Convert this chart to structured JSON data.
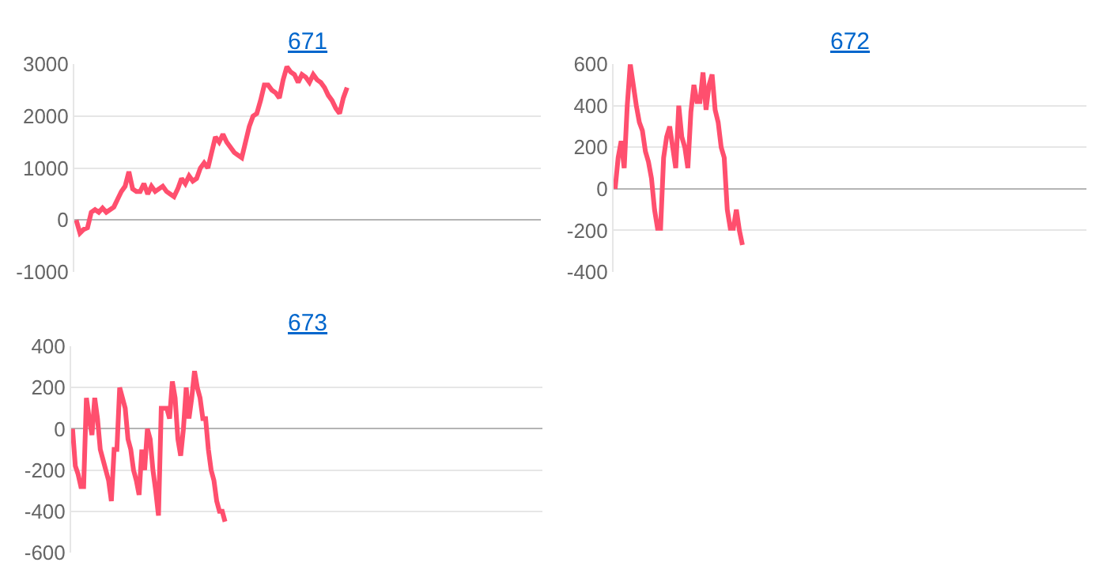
{
  "chart_data": [
    {
      "type": "line",
      "title": "671",
      "color": "#ff4f6e",
      "ylim": [
        -1000,
        3000
      ],
      "yticks": [
        -1000,
        0,
        1000,
        2000,
        3000
      ],
      "grid": "y",
      "tick_labels": "y",
      "marker": "none",
      "categories": [
        null,
        null,
        null,
        null,
        null,
        null,
        null,
        null,
        null,
        null,
        null,
        null,
        null,
        null,
        null,
        null,
        null,
        null,
        null,
        null,
        null,
        null,
        null,
        null,
        null,
        null,
        null,
        null,
        null,
        null,
        null,
        null,
        null,
        null,
        null,
        null,
        null,
        null,
        null,
        null,
        null,
        null,
        null,
        null,
        null,
        null,
        null,
        null,
        null,
        null,
        null,
        null,
        null,
        null,
        null,
        null,
        null,
        null,
        null,
        null,
        null,
        null,
        null,
        null,
        null,
        null,
        null,
        null,
        null,
        null,
        null,
        null,
        null,
        null,
        null,
        null,
        null,
        null,
        null,
        null,
        null,
        null,
        null,
        null,
        null,
        null,
        null,
        null,
        null,
        null,
        null,
        null,
        null,
        null,
        null,
        null,
        null,
        null,
        null,
        null,
        null,
        null,
        null,
        null,
        null,
        null,
        null,
        null,
        null,
        null,
        null,
        null,
        null,
        null,
        null,
        null,
        null,
        null,
        null,
        null,
        null,
        null,
        null,
        null
      ],
      "values": [
        0,
        -250,
        -180,
        -150,
        150,
        200,
        150,
        230,
        150,
        200,
        250,
        400,
        550,
        650,
        930,
        600,
        550,
        550,
        700,
        500,
        650,
        550,
        600,
        650,
        550,
        500,
        450,
        600,
        800,
        700,
        850,
        750,
        800,
        1000,
        1100,
        1000,
        1300,
        1600,
        1500,
        1650,
        1500,
        1400,
        1300,
        1250,
        1200,
        1500,
        1800,
        2000,
        2050,
        2300,
        2600,
        2600,
        2500,
        2450,
        2350,
        2700,
        2950,
        2850,
        2800,
        2650,
        2800,
        2750,
        2650,
        2800,
        2700,
        2650,
        2550,
        2400,
        2300,
        2150,
        2050,
        2350,
        2550,
        null,
        null,
        null,
        null,
        null,
        null,
        null,
        null,
        null,
        null,
        null,
        null,
        null,
        null,
        null,
        null,
        null,
        null,
        null,
        null,
        null,
        null,
        null,
        null,
        null,
        null,
        null,
        null,
        null,
        null,
        null,
        null,
        null,
        null,
        null,
        null,
        null,
        null,
        null,
        null,
        null,
        null,
        null,
        null,
        null,
        null,
        null,
        null,
        null,
        null,
        null
      ]
    },
    {
      "type": "line",
      "title": "672",
      "color": "#ff4f6e",
      "ylim": [
        -400,
        600
      ],
      "yticks": [
        -400,
        -200,
        0,
        200,
        400,
        600
      ],
      "grid": "y",
      "tick_labels": "y",
      "marker": "none",
      "categories": [
        null,
        null,
        null,
        null,
        null,
        null,
        null,
        null,
        null,
        null,
        null,
        null,
        null,
        null,
        null,
        null,
        null,
        null,
        null,
        null,
        null,
        null,
        null,
        null,
        null,
        null,
        null,
        null,
        null,
        null,
        null,
        null,
        null,
        null,
        null,
        null,
        null,
        null,
        null,
        null,
        null,
        null,
        null,
        null,
        null,
        null,
        null,
        null,
        null,
        null,
        null,
        null,
        null,
        null,
        null,
        null,
        null,
        null,
        null,
        null,
        null,
        null,
        null,
        null,
        null,
        null,
        null,
        null,
        null,
        null,
        null,
        null,
        null,
        null,
        null,
        null,
        null,
        null,
        null,
        null,
        null,
        null,
        null,
        null,
        null,
        null,
        null,
        null,
        null,
        null,
        null,
        null,
        null,
        null,
        null,
        null,
        null,
        null,
        null,
        null,
        null,
        null,
        null,
        null,
        null,
        null,
        null,
        null,
        null,
        null,
        null,
        null,
        null,
        null,
        null,
        null,
        null,
        null,
        null,
        null,
        null,
        null,
        null,
        null,
        null,
        null,
        null,
        null,
        null,
        null,
        null,
        null,
        null,
        null,
        null,
        null,
        null,
        null,
        null,
        null,
        null,
        null,
        null,
        null,
        null,
        null,
        null,
        null,
        null,
        null,
        null,
        null,
        null,
        null,
        null,
        null
      ],
      "values": [
        0,
        150,
        230,
        100,
        400,
        600,
        500,
        400,
        320,
        280,
        180,
        130,
        50,
        -100,
        -190,
        -190,
        150,
        250,
        300,
        200,
        100,
        400,
        250,
        200,
        100,
        370,
        500,
        420,
        420,
        560,
        380,
        500,
        550,
        380,
        320,
        200,
        150,
        -100,
        -190,
        -190,
        -100,
        -200,
        -270,
        null,
        null,
        null,
        null,
        null,
        null,
        null,
        null,
        null,
        null,
        null,
        null,
        null,
        null,
        null,
        null,
        null,
        null,
        null,
        null,
        null,
        null,
        null,
        null,
        null,
        null,
        null,
        null,
        null,
        null,
        null,
        null,
        null,
        null,
        null,
        null,
        null,
        null,
        null,
        null,
        null,
        null,
        null,
        null,
        null,
        null,
        null,
        null,
        null,
        null,
        null,
        null,
        null,
        null,
        null,
        null,
        null,
        null,
        null,
        null,
        null,
        null,
        null,
        null,
        null,
        null,
        null,
        null,
        null,
        null,
        null,
        null,
        null,
        null,
        null,
        null,
        null,
        null,
        null,
        null,
        null,
        null,
        null,
        null,
        null,
        null,
        null,
        null,
        null,
        null,
        null,
        null,
        null,
        null,
        null,
        null,
        null,
        null,
        null,
        null,
        null,
        null,
        null,
        null,
        null,
        null,
        null,
        null,
        null,
        null,
        null,
        null,
        null
      ]
    },
    {
      "type": "line",
      "title": "673",
      "color": "#ff4f6e",
      "ylim": [
        -600,
        400
      ],
      "yticks": [
        -600,
        -400,
        -200,
        0,
        200,
        400
      ],
      "grid": "y",
      "tick_labels": "y",
      "marker": "none",
      "categories": [
        null,
        null,
        null,
        null,
        null,
        null,
        null,
        null,
        null,
        null,
        null,
        null,
        null,
        null,
        null,
        null,
        null,
        null,
        null,
        null,
        null,
        null,
        null,
        null,
        null,
        null,
        null,
        null,
        null,
        null,
        null,
        null,
        null,
        null,
        null,
        null,
        null,
        null,
        null,
        null,
        null,
        null,
        null,
        null,
        null,
        null,
        null,
        null,
        null,
        null,
        null,
        null,
        null,
        null,
        null,
        null,
        null,
        null,
        null,
        null,
        null,
        null,
        null,
        null,
        null,
        null,
        null,
        null,
        null,
        null,
        null,
        null,
        null,
        null,
        null,
        null,
        null,
        null,
        null,
        null,
        null,
        null,
        null,
        null,
        null,
        null,
        null,
        null,
        null,
        null,
        null,
        null,
        null,
        null,
        null,
        null,
        null,
        null,
        null,
        null,
        null,
        null,
        null,
        null,
        null,
        null,
        null,
        null,
        null,
        null,
        null,
        null,
        null,
        null,
        null,
        null,
        null,
        null,
        null,
        null,
        null,
        null,
        null,
        null,
        null,
        null,
        null,
        null,
        null,
        null,
        null,
        null,
        null,
        null,
        null,
        null,
        null,
        null,
        null,
        null,
        null,
        null,
        null,
        null,
        null,
        null,
        null,
        null,
        null,
        null,
        null,
        null,
        null,
        null,
        null,
        null,
        null,
        null,
        null,
        null,
        null,
        null,
        null,
        null,
        null,
        null,
        null,
        null,
        null,
        null
      ],
      "values": [
        0,
        -180,
        -220,
        -280,
        -280,
        150,
        50,
        -30,
        150,
        50,
        -100,
        -150,
        -200,
        -250,
        -350,
        -100,
        -100,
        200,
        150,
        100,
        -50,
        -100,
        -200,
        -250,
        -320,
        -100,
        -200,
        0,
        -50,
        -200,
        -300,
        -420,
        100,
        100,
        100,
        50,
        230,
        150,
        -50,
        -130,
        0,
        200,
        50,
        150,
        280,
        200,
        150,
        50,
        50,
        -100,
        -200,
        -250,
        -350,
        -400,
        -400,
        -450,
        null,
        null,
        null,
        null,
        null,
        null,
        null,
        null,
        null,
        null,
        null,
        null,
        null,
        null,
        null,
        null,
        null,
        null,
        null,
        null,
        null,
        null,
        null,
        null,
        null,
        null,
        null,
        null,
        null,
        null,
        null,
        null,
        null,
        null,
        null,
        null,
        null,
        null,
        null,
        null,
        null,
        null,
        null,
        null,
        null,
        null,
        null,
        null,
        null,
        null,
        null,
        null,
        null,
        null,
        null,
        null,
        null,
        null,
        null,
        null,
        null,
        null,
        null,
        null,
        null,
        null,
        null,
        null,
        null,
        null,
        null,
        null,
        null,
        null,
        null,
        null,
        null,
        null,
        null,
        null,
        null,
        null,
        null,
        null,
        null,
        null,
        null,
        null,
        null,
        null,
        null,
        null,
        null,
        null,
        null,
        null,
        null,
        null,
        null,
        null,
        null,
        null,
        null,
        null,
        null,
        null,
        null,
        null,
        null,
        null,
        null,
        null,
        null,
        null
      ]
    }
  ]
}
